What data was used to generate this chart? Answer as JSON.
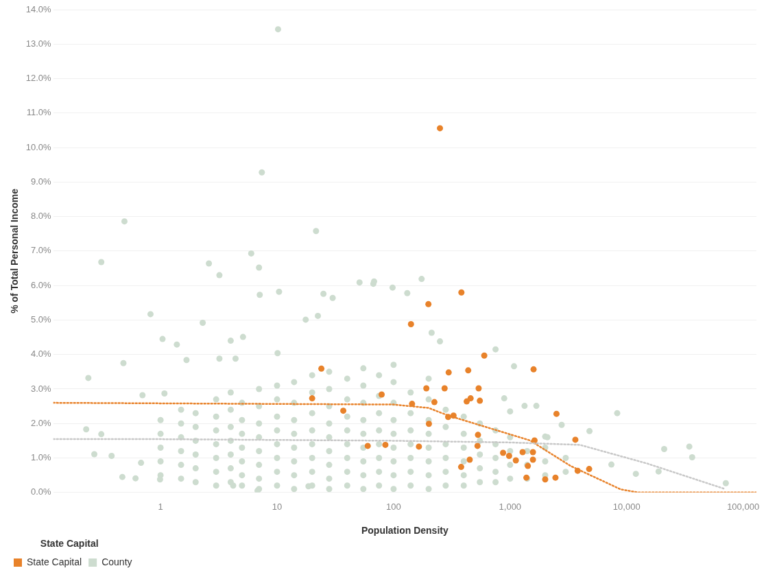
{
  "chart_data": {
    "type": "scatter",
    "xlabel": "Population Density",
    "ylabel": "% of Total Personal Income",
    "legend_title": "State Capital",
    "legend": "bottom left",
    "log": "x",
    "grid": "y",
    "marker": "circle",
    "xlim": [
      0.12,
      130000
    ],
    "xticks": [
      1,
      10,
      100,
      {
        "value": 1000,
        "label": "1,000"
      },
      {
        "value": 10000,
        "label": "10,000"
      },
      {
        "value": 100000,
        "label": "100,000"
      }
    ],
    "ylim": [
      0,
      14
    ],
    "yticks": [
      {
        "value": 0,
        "label": "0.0%"
      },
      {
        "value": 1,
        "label": "1.0%"
      },
      {
        "value": 2,
        "label": "2.0%"
      },
      {
        "value": 3,
        "label": "3.0%"
      },
      {
        "value": 4,
        "label": "4.0%"
      },
      {
        "value": 5,
        "label": "5.0%"
      },
      {
        "value": 6,
        "label": "6.0%"
      },
      {
        "value": 7,
        "label": "7.0%"
      },
      {
        "value": 8,
        "label": "8.0%"
      },
      {
        "value": 9,
        "label": "9.0%"
      },
      {
        "value": 10,
        "label": "10.0%"
      },
      {
        "value": 11,
        "label": "11.0%"
      },
      {
        "value": 12,
        "label": "12.0%"
      },
      {
        "value": 13,
        "label": "13.0%"
      },
      {
        "value": 14,
        "label": "14.0%"
      }
    ],
    "series": [
      {
        "name": "State Capital",
        "color": "#e8822a",
        "x": [
          250,
          382,
          199,
          141,
          600,
          1590,
          24,
          20,
          79,
          37,
          60,
          85,
          165,
          144,
          191,
          274,
          297,
          437,
          537,
          550,
          424,
          458,
          224,
          201,
          294,
          327,
          530,
          525,
          450,
          380,
          870,
          980,
          1120,
          1280,
          1620,
          1570,
          1570,
          1420,
          1380,
          2000,
          2450,
          2500,
          3630,
          3800,
          4770
        ],
        "values": [
          10.56,
          5.8,
          5.46,
          4.88,
          3.97,
          3.57,
          3.59,
          2.73,
          2.84,
          2.37,
          1.35,
          1.38,
          1.33,
          2.57,
          3.02,
          3.02,
          3.48,
          3.54,
          3.02,
          2.66,
          2.64,
          2.73,
          2.62,
          1.99,
          2.19,
          2.23,
          1.67,
          1.35,
          0.95,
          0.74,
          1.15,
          1.06,
          0.93,
          1.17,
          1.51,
          1.17,
          0.95,
          0.77,
          0.43,
          0.38,
          0.43,
          2.28,
          1.53,
          0.63,
          0.68
        ]
      },
      {
        "name": "County",
        "color": "#cddccf",
        "x": [
          10.2,
          7.4,
          0.49,
          21.6,
          6,
          0.31,
          2.6,
          3.2,
          7,
          7.1,
          10.4,
          0.82,
          2.3,
          0.24,
          0.48,
          0.23,
          0.31,
          0.27,
          0.38,
          0.47,
          1.04,
          1.38,
          1.67,
          3.2,
          4.4,
          4,
          5.1,
          10.1,
          17.6,
          22.4,
          51,
          30,
          0.7,
          1.08,
          0.68,
          0.99,
          0.61,
          4.2,
          6.8,
          18.6,
          68,
          174,
          25,
          67,
          98,
          131,
          212,
          250,
          750,
          1080,
          890,
          2000,
          8300,
          4800,
          21000,
          34500,
          36500,
          12000,
          18800,
          7400,
          71000,
          1330,
          1680,
          1000,
          2770,
          2090,
          1,
          1,
          1,
          1,
          1,
          1.5,
          1.5,
          1.5,
          1.5,
          1.5,
          1.5,
          2,
          2,
          2,
          2,
          2,
          2,
          3,
          3,
          3,
          3,
          3,
          3,
          3,
          4,
          4,
          4,
          4,
          4,
          4,
          4,
          5,
          5,
          5,
          5,
          5,
          5,
          5,
          7,
          7,
          7,
          7,
          7,
          7,
          7,
          7,
          10,
          10,
          10,
          10,
          10,
          10,
          10,
          10,
          14,
          14,
          14,
          14,
          14,
          14,
          14,
          14,
          20,
          20,
          20,
          20,
          20,
          20,
          20,
          20,
          28,
          28,
          28,
          28,
          28,
          28,
          28,
          28,
          28,
          40,
          40,
          40,
          40,
          40,
          40,
          40,
          40,
          55,
          55,
          55,
          55,
          55,
          55,
          55,
          55,
          55,
          75,
          75,
          75,
          75,
          75,
          75,
          75,
          75,
          100,
          100,
          100,
          100,
          100,
          100,
          100,
          100,
          100,
          140,
          140,
          140,
          140,
          140,
          140,
          140,
          200,
          200,
          200,
          200,
          200,
          200,
          200,
          200,
          280,
          280,
          280,
          280,
          280,
          280,
          400,
          400,
          400,
          400,
          400,
          400,
          550,
          550,
          550,
          550,
          550,
          750,
          750,
          750,
          750,
          750,
          1000,
          1000,
          1000,
          1000,
          1400,
          1400,
          1400,
          2000,
          2000,
          2000,
          3000,
          3000
        ],
        "values": [
          13.43,
          9.28,
          7.86,
          7.58,
          6.93,
          6.68,
          6.64,
          6.3,
          6.52,
          5.73,
          5.82,
          5.17,
          4.92,
          3.32,
          3.75,
          1.83,
          1.69,
          1.11,
          1.06,
          0.45,
          4.45,
          4.29,
          3.84,
          3.88,
          3.88,
          4.4,
          4.51,
          4.04,
          5.01,
          5.12,
          6.09,
          5.64,
          2.82,
          2.87,
          0.86,
          0.38,
          0.41,
          0.2,
          0.05,
          0.18,
          6.12,
          6.19,
          5.76,
          6.05,
          5.94,
          5.78,
          4.63,
          4.38,
          4.15,
          3.66,
          2.73,
          1.62,
          2.3,
          1.78,
          1.26,
          1.33,
          1.02,
          0.54,
          0.61,
          0.81,
          0.27,
          2.51,
          2.51,
          2.35,
          1.96,
          1.6,
          0.5,
          0.9,
          1.3,
          1.7,
          2.1,
          0.4,
          0.8,
          1.2,
          1.6,
          2,
          2.4,
          0.3,
          0.7,
          1.1,
          1.5,
          1.9,
          2.3,
          0.2,
          0.6,
          1,
          1.4,
          1.8,
          2.2,
          2.7,
          0.3,
          0.7,
          1.1,
          1.5,
          1.9,
          2.4,
          2.9,
          0.2,
          0.5,
          0.9,
          1.3,
          1.7,
          2.1,
          2.6,
          0.1,
          0.4,
          0.8,
          1.2,
          1.6,
          2,
          2.5,
          3,
          0.2,
          0.6,
          1,
          1.4,
          1.8,
          2.2,
          2.7,
          3.1,
          0.1,
          0.5,
          0.9,
          1.3,
          1.7,
          2.1,
          2.6,
          3.2,
          0.2,
          0.6,
          1,
          1.4,
          1.8,
          2.3,
          2.9,
          3.4,
          0.1,
          0.4,
          0.8,
          1.2,
          1.6,
          2,
          2.5,
          3,
          3.5,
          0.2,
          0.6,
          1,
          1.4,
          1.8,
          2.2,
          2.7,
          3.3,
          0.1,
          0.5,
          0.9,
          1.3,
          1.7,
          2.1,
          2.6,
          3.1,
          3.6,
          0.2,
          0.6,
          1,
          1.4,
          1.8,
          2.3,
          2.8,
          3.4,
          0.1,
          0.5,
          0.9,
          1.3,
          1.7,
          2.1,
          2.6,
          3.2,
          3.7,
          0.2,
          0.6,
          1,
          1.4,
          1.8,
          2.3,
          2.9,
          0.1,
          0.5,
          0.9,
          1.3,
          1.7,
          2.1,
          2.7,
          3.3,
          0.2,
          0.6,
          1,
          1.4,
          1.9,
          2.4,
          0.2,
          0.5,
          0.9,
          1.3,
          1.7,
          2.2,
          0.3,
          0.7,
          1.1,
          1.5,
          2,
          0.3,
          0.6,
          1,
          1.4,
          1.8,
          0.4,
          0.8,
          1.2,
          1.6,
          0.4,
          0.8,
          1.2,
          0.5,
          0.9,
          1.3,
          0.6,
          1
        ]
      },
      {
        "type": "line",
        "color": "#c8c8c8",
        "line_style": "dotted",
        "marker": "none",
        "x": [
          0.12,
          0.65,
          100,
          1000,
          3980,
          15000,
          70000
        ],
        "values": [
          1.55,
          1.55,
          1.5,
          1.45,
          1.38,
          0.84,
          0.1
        ]
      },
      {
        "type": "line",
        "color": "#e8822a",
        "line_style": "dotted",
        "marker": "none",
        "x": [
          0.12,
          100,
          200,
          295,
          1480,
          3300,
          8900,
          12600,
          130000
        ],
        "values": [
          2.6,
          2.55,
          2.45,
          2.23,
          1.51,
          0.77,
          0.09,
          0,
          0
        ]
      }
    ]
  }
}
